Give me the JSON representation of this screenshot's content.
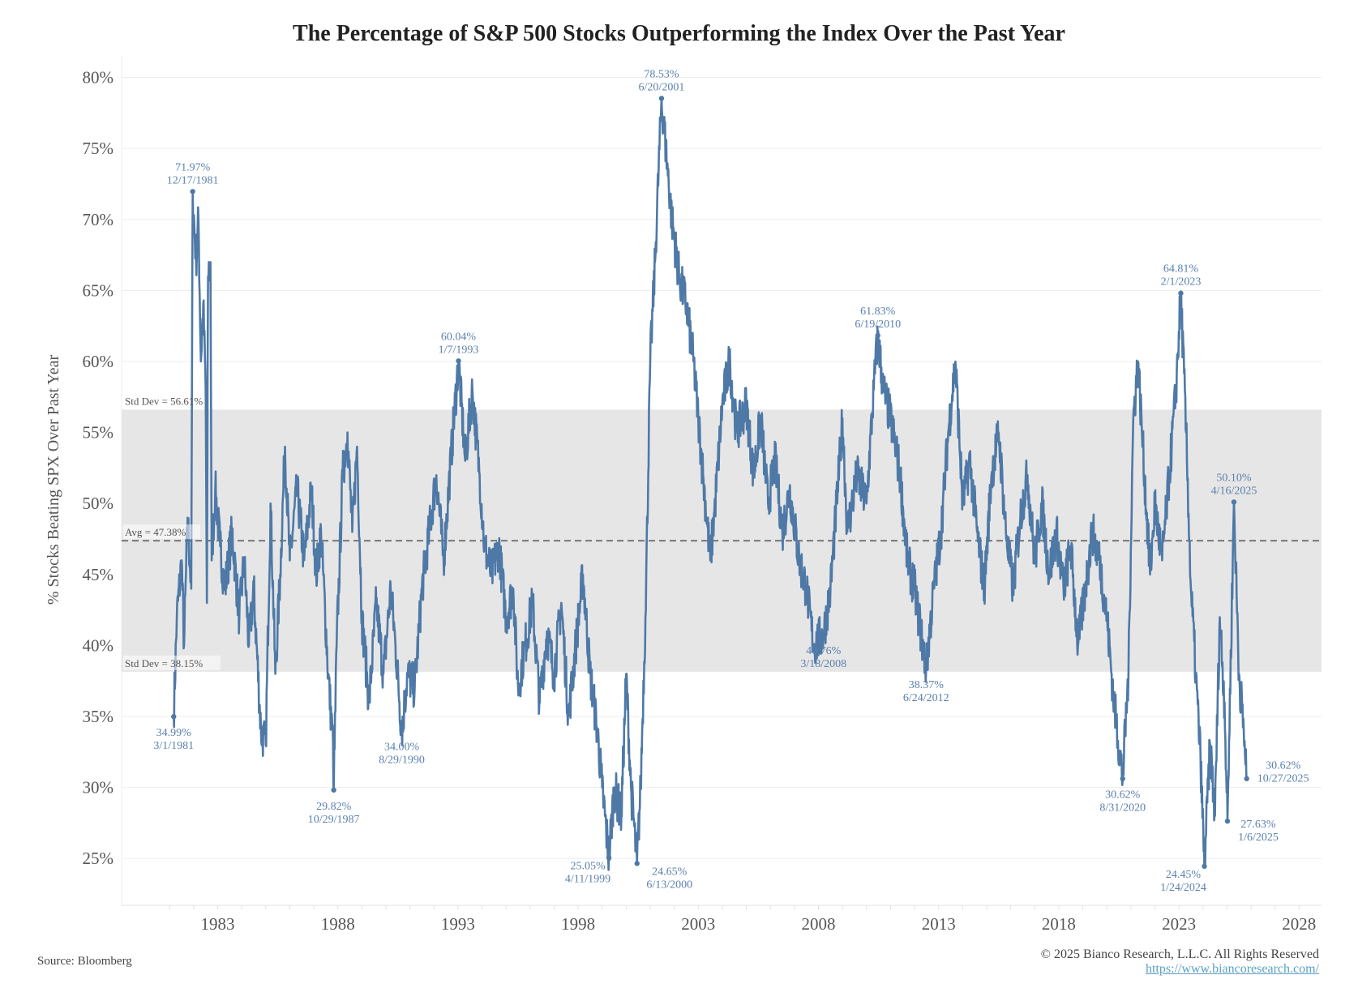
{
  "chart_data": {
    "type": "line",
    "title": "The Percentage of S&P 500 Stocks Outperforming the Index Over the Past Year",
    "xlabel": "",
    "ylabel": "% Stocks Beating SPX Over Past Year",
    "xlim": [
      1980.2,
      2028.9
    ],
    "ylim": [
      22,
      81
    ],
    "x_ticks": [
      "1983",
      "1988",
      "1993",
      "1998",
      "2003",
      "2008",
      "2013",
      "2018",
      "2023",
      "2028"
    ],
    "y_ticks": [
      "25%",
      "30%",
      "35%",
      "40%",
      "45%",
      "50%",
      "55%",
      "60%",
      "65%",
      "70%",
      "75%",
      "80%"
    ],
    "grid": true,
    "line_color": "#4e79a7",
    "reference": {
      "avg": 47.38,
      "avg_label": "Avg = 47.38%",
      "upper": 56.61,
      "upper_label": "Std Dev = 56.61%",
      "lower": 38.15,
      "lower_label": "Std Dev = 38.15%",
      "band_color": "#e6e6e6"
    },
    "series": [
      {
        "name": "% Stocks Beating SPX Over Past Year",
        "x": [
          1981.17,
          1981.3,
          1981.5,
          1981.6,
          1981.75,
          1981.9,
          1981.96,
          1982.1,
          1982.2,
          1982.3,
          1982.4,
          1982.5,
          1982.55,
          1982.6,
          1982.7,
          1982.75,
          1982.9,
          1983.1,
          1983.3,
          1983.6,
          1983.9,
          1984.1,
          1984.3,
          1984.5,
          1984.8,
          1985.0,
          1985.2,
          1985.4,
          1985.6,
          1985.8,
          1986.0,
          1986.3,
          1986.6,
          1986.9,
          1987.1,
          1987.3,
          1987.6,
          1987.8,
          1987.83,
          1987.95,
          1988.2,
          1988.4,
          1988.6,
          1988.8,
          1989.0,
          1989.3,
          1989.6,
          1989.9,
          1990.2,
          1990.4,
          1990.66,
          1990.9,
          1991.2,
          1991.5,
          1991.8,
          1992.1,
          1992.4,
          1992.7,
          1993.02,
          1993.3,
          1993.6,
          1993.9,
          1994.1,
          1994.4,
          1994.7,
          1995.0,
          1995.3,
          1995.5,
          1995.8,
          1996.1,
          1996.4,
          1996.7,
          1997.0,
          1997.3,
          1997.6,
          1997.9,
          1998.2,
          1998.5,
          1998.8,
          1999.0,
          1999.28,
          1999.5,
          1999.8,
          2000.0,
          2000.2,
          2000.45,
          2000.6,
          2000.8,
          2001.0,
          2001.2,
          2001.47,
          2001.7,
          2001.9,
          2002.2,
          2002.5,
          2002.8,
          2003.0,
          2003.2,
          2003.5,
          2003.7,
          2004.0,
          2004.3,
          2004.6,
          2005.0,
          2005.3,
          2005.6,
          2005.9,
          2006.2,
          2006.5,
          2006.8,
          2007.2,
          2007.5,
          2007.8,
          2008.21,
          2008.5,
          2008.8,
          2009.0,
          2009.2,
          2009.6,
          2010.0,
          2010.3,
          2010.47,
          2010.7,
          2011.0,
          2011.4,
          2011.7,
          2012.0,
          2012.48,
          2012.8,
          2013.1,
          2013.4,
          2013.7,
          2014.0,
          2014.3,
          2014.6,
          2014.9,
          2015.2,
          2015.5,
          2015.8,
          2016.1,
          2016.4,
          2016.7,
          2017.0,
          2017.3,
          2017.6,
          2017.9,
          2018.2,
          2018.5,
          2018.8,
          2019.1,
          2019.4,
          2019.7,
          2020.0,
          2020.3,
          2020.66,
          2020.9,
          2021.1,
          2021.3,
          2021.5,
          2021.8,
          2022.0,
          2022.3,
          2022.6,
          2022.88,
          2023.08,
          2023.3,
          2023.5,
          2023.7,
          2023.9,
          2024.06,
          2024.3,
          2024.5,
          2024.7,
          2024.9,
          2025.02,
          2025.29,
          2025.5,
          2025.7,
          2025.82
        ],
        "y": [
          34.99,
          42,
          46,
          40,
          49,
          44,
          71.97,
          67,
          70,
          60,
          64,
          58,
          43,
          66,
          67,
          46,
          51,
          47,
          44,
          48,
          42,
          46,
          40,
          44,
          34,
          33,
          50,
          38,
          45,
          54,
          46,
          51,
          46,
          51,
          45,
          48,
          38,
          33,
          29.82,
          40,
          52,
          55,
          48,
          54,
          42,
          36,
          43,
          38,
          44,
          40,
          34.0,
          38,
          37,
          44,
          48,
          52,
          46,
          53,
          60.04,
          53,
          58,
          52,
          47,
          45,
          47,
          42,
          44,
          37,
          40,
          43,
          36,
          41,
          38,
          43,
          35,
          40,
          45,
          38,
          34,
          30,
          25.05,
          30,
          28,
          38,
          30,
          24.65,
          30,
          42,
          60,
          67,
          78.53,
          74,
          70,
          66,
          64,
          60,
          56,
          52,
          46,
          50,
          57,
          60,
          55,
          57,
          52,
          56,
          50,
          53,
          48,
          51,
          46,
          44,
          40,
          40.76,
          44,
          51,
          56,
          48,
          52,
          50,
          58,
          61.83,
          58,
          56,
          52,
          46,
          44,
          38.37,
          44,
          48,
          55,
          60,
          50,
          53,
          48,
          44,
          52,
          55,
          48,
          44,
          49,
          52,
          46,
          50,
          45,
          48,
          44,
          47,
          40,
          44,
          48,
          46,
          42,
          36,
          30.62,
          38,
          56,
          60,
          54,
          45,
          50,
          46,
          52,
          58,
          64.81,
          55,
          44,
          38,
          32,
          24.45,
          33,
          28,
          42,
          36,
          27.63,
          50.1,
          38,
          34,
          30.62
        ]
      }
    ],
    "annotations": [
      {
        "value": "34.99%",
        "date": "3/1/1981",
        "x": 1981.17,
        "y": 34.99,
        "pos": "below"
      },
      {
        "value": "71.97%",
        "date": "12/17/1981",
        "x": 1981.96,
        "y": 71.97,
        "pos": "above"
      },
      {
        "value": "29.82%",
        "date": "10/29/1987",
        "x": 1987.83,
        "y": 29.82,
        "pos": "below"
      },
      {
        "value": "34.00%",
        "date": "8/29/1990",
        "x": 1990.66,
        "y": 34.0,
        "pos": "below"
      },
      {
        "value": "60.04%",
        "date": "1/7/1993",
        "x": 1993.02,
        "y": 60.04,
        "pos": "above"
      },
      {
        "value": "25.05%",
        "date": "4/11/1999",
        "x": 1999.28,
        "y": 25.05,
        "pos": "below-left"
      },
      {
        "value": "24.65%",
        "date": "6/13/2000",
        "x": 2000.45,
        "y": 24.65,
        "pos": "below-right"
      },
      {
        "value": "78.53%",
        "date": "6/20/2001",
        "x": 2001.47,
        "y": 78.53,
        "pos": "above"
      },
      {
        "value": "40.76%",
        "date": "3/18/2008",
        "x": 2008.21,
        "y": 40.76,
        "pos": "below"
      },
      {
        "value": "61.83%",
        "date": "6/19/2010",
        "x": 2010.47,
        "y": 61.83,
        "pos": "above"
      },
      {
        "value": "38.37%",
        "date": "6/24/2012",
        "x": 2012.48,
        "y": 38.37,
        "pos": "below"
      },
      {
        "value": "30.62%",
        "date": "8/31/2020",
        "x": 2020.66,
        "y": 30.62,
        "pos": "below"
      },
      {
        "value": "64.81%",
        "date": "2/1/2023",
        "x": 2023.08,
        "y": 64.81,
        "pos": "above"
      },
      {
        "value": "24.45%",
        "date": "1/24/2024",
        "x": 2024.06,
        "y": 24.45,
        "pos": "below-left"
      },
      {
        "value": "27.63%",
        "date": "1/6/2025",
        "x": 2025.02,
        "y": 27.63,
        "pos": "right"
      },
      {
        "value": "50.10%",
        "date": "4/16/2025",
        "x": 2025.29,
        "y": 50.1,
        "pos": "above"
      },
      {
        "value": "30.62%",
        "date": "10/27/2025",
        "x": 2025.82,
        "y": 30.62,
        "pos": "far-right"
      }
    ]
  },
  "footer": {
    "source": "Source: Bloomberg",
    "copyright": "© 2025 Bianco Research, L.L.C. All Rights Reserved",
    "url": "https://www.biancoresearch.com/"
  }
}
